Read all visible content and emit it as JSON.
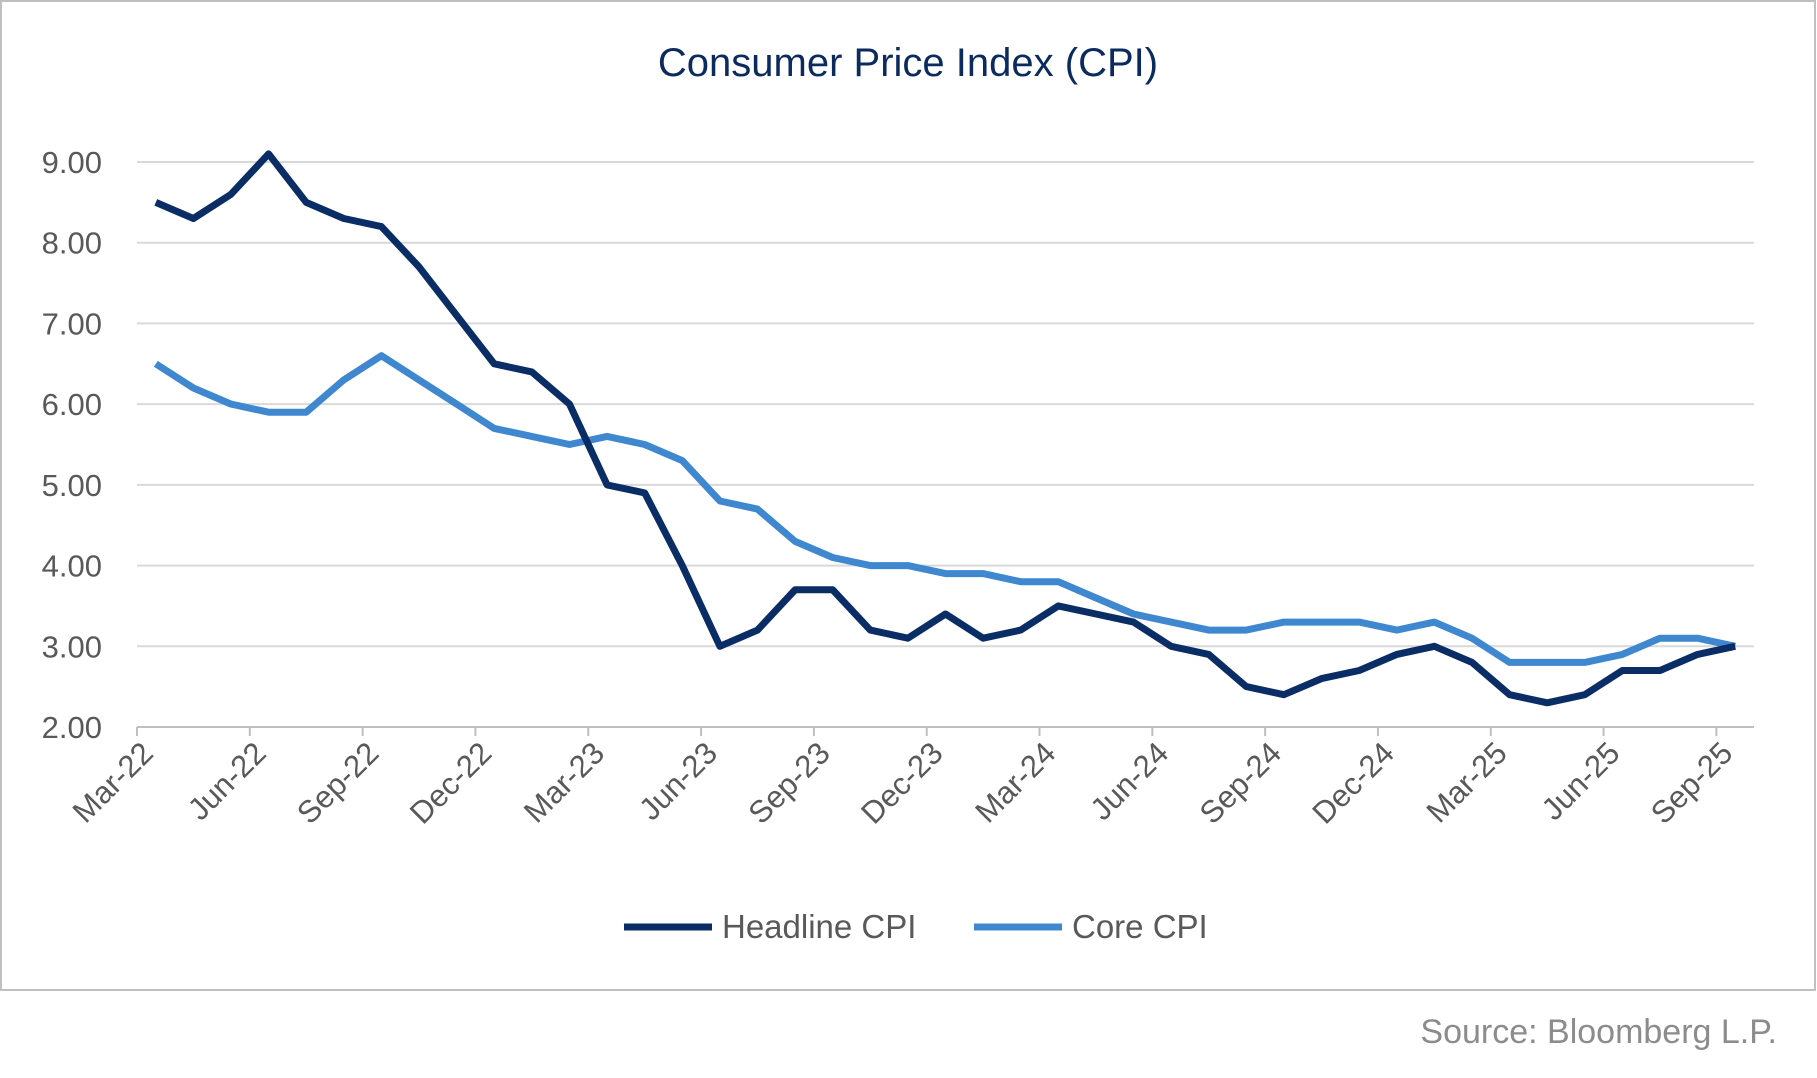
{
  "chart_data": {
    "type": "line",
    "title": "Consumer Price Index (CPI)",
    "xlabel": "",
    "ylabel": "",
    "ylim": [
      2,
      9
    ],
    "yticks": [
      "2.00",
      "3.00",
      "4.00",
      "5.00",
      "6.00",
      "7.00",
      "8.00",
      "9.00"
    ],
    "grid": true,
    "legend_position": "bottom",
    "xtick_labels": [
      "Mar-22",
      "Jun-22",
      "Sep-22",
      "Dec-22",
      "Mar-23",
      "Jun-23",
      "Sep-23",
      "Dec-23",
      "Mar-24",
      "Jun-24",
      "Sep-24",
      "Dec-24",
      "Mar-25",
      "Jun-25",
      "Sep-25"
    ],
    "x": [
      "Mar-22",
      "Apr-22",
      "May-22",
      "Jun-22",
      "Jul-22",
      "Aug-22",
      "Sep-22",
      "Oct-22",
      "Nov-22",
      "Dec-22",
      "Jan-23",
      "Feb-23",
      "Mar-23",
      "Apr-23",
      "May-23",
      "Jun-23",
      "Jul-23",
      "Aug-23",
      "Sep-23",
      "Oct-23",
      "Nov-23",
      "Dec-23",
      "Jan-24",
      "Feb-24",
      "Mar-24",
      "Apr-24",
      "May-24",
      "Jun-24",
      "Jul-24",
      "Aug-24",
      "Sep-24",
      "Oct-24",
      "Nov-24",
      "Dec-24",
      "Jan-25",
      "Feb-25",
      "Mar-25",
      "Apr-25",
      "May-25",
      "Jun-25",
      "Jul-25",
      "Aug-25",
      "Sep-25"
    ],
    "series": [
      {
        "name": "Headline CPI",
        "color": "#0b2d66",
        "values": [
          8.5,
          8.3,
          8.6,
          9.1,
          8.5,
          8.3,
          8.2,
          7.7,
          7.1,
          6.5,
          6.4,
          6.0,
          5.0,
          4.9,
          4.0,
          3.0,
          3.2,
          3.7,
          3.7,
          3.2,
          3.1,
          3.4,
          3.1,
          3.2,
          3.5,
          3.4,
          3.3,
          3.0,
          2.9,
          2.5,
          2.4,
          2.6,
          2.7,
          2.9,
          3.0,
          2.8,
          2.4,
          2.3,
          2.4,
          2.7,
          2.7,
          2.9,
          3.0
        ]
      },
      {
        "name": "Core CPI",
        "color": "#3f88d0",
        "values": [
          6.5,
          6.2,
          6.0,
          5.9,
          5.9,
          6.3,
          6.6,
          6.3,
          6.0,
          5.7,
          5.6,
          5.5,
          5.6,
          5.5,
          5.3,
          4.8,
          4.7,
          4.3,
          4.1,
          4.0,
          4.0,
          3.9,
          3.9,
          3.8,
          3.8,
          3.6,
          3.4,
          3.3,
          3.2,
          3.2,
          3.3,
          3.3,
          3.3,
          3.2,
          3.3,
          3.1,
          2.8,
          2.8,
          2.8,
          2.9,
          3.1,
          3.1,
          3.0
        ]
      }
    ]
  },
  "source": "Source: Bloomberg L.P."
}
